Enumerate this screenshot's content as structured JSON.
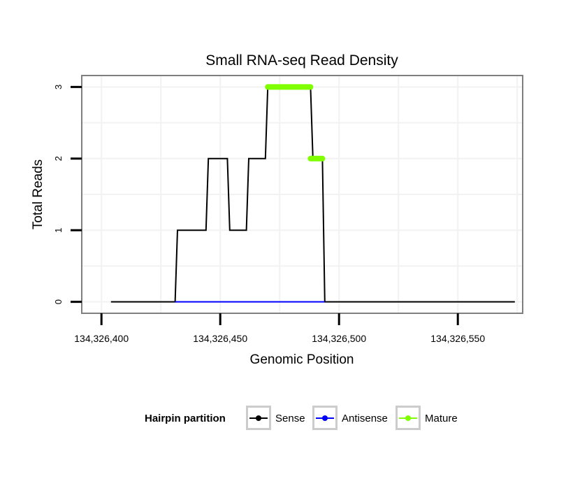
{
  "chart_data": {
    "type": "line",
    "title": "Small RNA-seq Read Density",
    "xlabel": "Genomic Position",
    "ylabel": "Total Reads",
    "xlim": [
      134326392,
      134326577
    ],
    "ylim": [
      -0.15,
      3.15
    ],
    "x_ticks": [
      134326400,
      134326450,
      134326500,
      134326550
    ],
    "x_tick_labels": [
      "134,326,400",
      "134,326,450",
      "134,326,500",
      "134,326,550"
    ],
    "y_ticks": [
      0,
      1,
      2,
      3
    ],
    "y_tick_labels": [
      "0",
      "1",
      "2",
      "3"
    ],
    "grid": true,
    "series": [
      {
        "name": "Sense",
        "color": "#000000",
        "points": [
          [
            134326404,
            0
          ],
          [
            134326431,
            0
          ],
          [
            134326432,
            1
          ],
          [
            134326444,
            1
          ],
          [
            134326445,
            2
          ],
          [
            134326453,
            2
          ],
          [
            134326454,
            1
          ],
          [
            134326461,
            1
          ],
          [
            134326462,
            2
          ],
          [
            134326469,
            2
          ],
          [
            134326470,
            3
          ],
          [
            134326488,
            3
          ],
          [
            134326489,
            2
          ],
          [
            134326493,
            2
          ],
          [
            134326494,
            0
          ],
          [
            134326574,
            0
          ]
        ]
      },
      {
        "name": "Antisense",
        "color": "#0000ff",
        "points": [
          [
            134326431,
            0
          ],
          [
            134326494,
            0
          ]
        ]
      },
      {
        "name": "Mature",
        "color": "#7fff00",
        "segments": [
          {
            "x_start": 134326470,
            "x_end": 134326488,
            "y": 3
          },
          {
            "x_start": 134326488,
            "x_end": 134326493,
            "y": 2
          }
        ]
      }
    ],
    "legend": {
      "title": "Hairpin partition",
      "position": "bottom",
      "items": [
        "Sense",
        "Antisense",
        "Mature"
      ]
    }
  }
}
